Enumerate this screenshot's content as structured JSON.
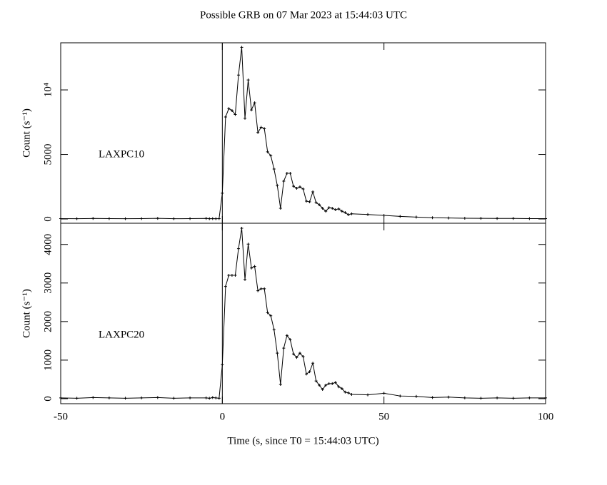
{
  "chart_data": [
    {
      "type": "line",
      "title": "Possible GRB on 07 Mar 2023 at 15:44:03 UTC",
      "annotation": "LAXPC10",
      "ylabel": "Count (s⁻¹)",
      "x": [
        -50,
        -45,
        -40,
        -35,
        -30,
        -25,
        -20,
        -15,
        -10,
        -5,
        -4,
        -3,
        -2,
        -1,
        0,
        1,
        2,
        3,
        4,
        5,
        6,
        7,
        8,
        9,
        10,
        11,
        12,
        13,
        14,
        15,
        16,
        17,
        18,
        19,
        20,
        21,
        22,
        23,
        24,
        25,
        26,
        27,
        28,
        29,
        30,
        31,
        32,
        33,
        34,
        35,
        36,
        37,
        38,
        39,
        40,
        45,
        50,
        55,
        60,
        65,
        70,
        75,
        80,
        85,
        90,
        95,
        100
      ],
      "series": [
        {
          "name": "LAXPC10",
          "color": "#000000",
          "values": [
            30,
            20,
            40,
            30,
            20,
            30,
            50,
            20,
            30,
            40,
            20,
            30,
            20,
            30,
            2000,
            7900,
            8550,
            8400,
            8100,
            11150,
            13300,
            7800,
            10770,
            8450,
            9000,
            6700,
            7100,
            7000,
            5200,
            4900,
            3870,
            2600,
            830,
            2930,
            3540,
            3540,
            2540,
            2380,
            2490,
            2320,
            1380,
            1330,
            2100,
            1270,
            1100,
            830,
            600,
            880,
            830,
            720,
            780,
            600,
            500,
            330,
            400,
            350,
            280,
            200,
            150,
            100,
            80,
            60,
            50,
            40,
            40,
            30,
            30
          ]
        }
      ],
      "xlim": [
        -50,
        100
      ],
      "xticks": [
        -50,
        0,
        50,
        100
      ],
      "vline": 0,
      "ylim": [
        -330,
        13650
      ],
      "yticks": [
        0,
        5000,
        {
          "value": 10000,
          "label": "10⁴"
        }
      ]
    },
    {
      "type": "line",
      "annotation": "LAXPC20",
      "ylabel": "Count (s⁻¹)",
      "xlabel": "Time (s, since T0 = 15:44:03 UTC)",
      "x": [
        -50,
        -45,
        -40,
        -35,
        -30,
        -25,
        -20,
        -15,
        -10,
        -5,
        -4,
        -3,
        -2,
        -1,
        0,
        1,
        2,
        3,
        4,
        5,
        6,
        7,
        8,
        9,
        10,
        11,
        12,
        13,
        14,
        15,
        16,
        17,
        18,
        19,
        20,
        21,
        22,
        23,
        24,
        25,
        26,
        27,
        28,
        29,
        30,
        31,
        32,
        33,
        34,
        35,
        36,
        37,
        38,
        39,
        40,
        45,
        50,
        55,
        60,
        65,
        70,
        75,
        80,
        85,
        90,
        95,
        100
      ],
      "series": [
        {
          "name": "LAXPC20",
          "color": "#000000",
          "values": [
            20,
            10,
            30,
            20,
            10,
            20,
            30,
            10,
            20,
            20,
            10,
            30,
            20,
            10,
            880,
            2910,
            3200,
            3200,
            3200,
            3890,
            4420,
            3090,
            4010,
            3390,
            3430,
            2800,
            2850,
            2850,
            2230,
            2150,
            1790,
            1180,
            370,
            1310,
            1640,
            1530,
            1160,
            1070,
            1180,
            1090,
            640,
            700,
            920,
            460,
            350,
            240,
            350,
            390,
            390,
            420,
            310,
            260,
            170,
            150,
            110,
            100,
            140,
            70,
            60,
            30,
            40,
            20,
            10,
            20,
            10,
            20,
            20
          ]
        }
      ],
      "xlim": [
        -50,
        100
      ],
      "xticks": [
        -50,
        0,
        50,
        100
      ],
      "vline": 0,
      "ylim": [
        -130,
        4550
      ],
      "yticks": [
        0,
        1000,
        2000,
        3000,
        4000
      ]
    }
  ]
}
